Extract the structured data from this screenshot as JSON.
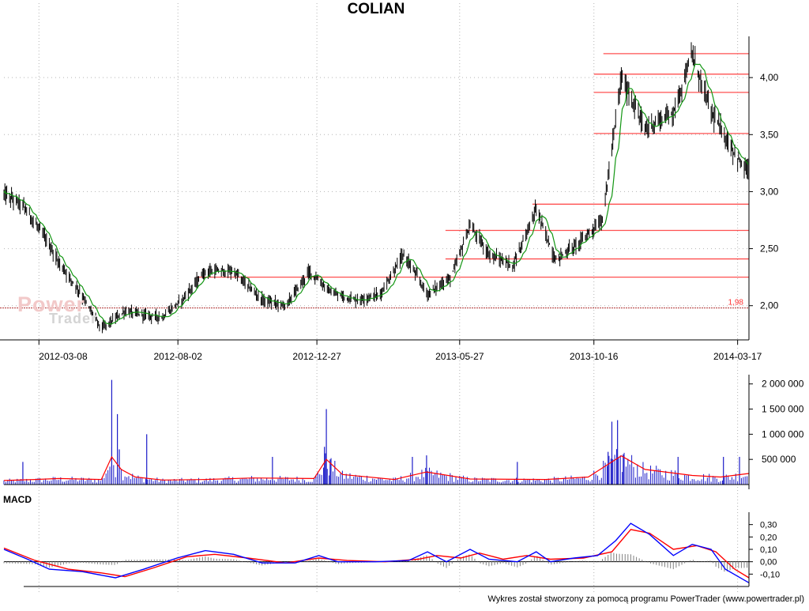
{
  "title": "COLIAN",
  "watermark": {
    "line1": "Power",
    "line2": "Trader"
  },
  "footer": "Wykres został stworzony za pomocą programu PowerTrader (www.powertrader.pl)",
  "colors": {
    "grid": "#b4b4b4",
    "hline": "#ff5050",
    "price": "#000000",
    "ma": "#129612",
    "volume": "#1c1cc8",
    "volume_ma": "#ff0000",
    "macd": "#0000ff",
    "signal": "#ff0000",
    "hist": "#808080"
  },
  "chart_data": [
    {
      "panel": "price",
      "type": "line",
      "title": "COLIAN",
      "ylim": [
        1.7,
        4.5
      ],
      "yticks": [
        "2,00",
        "2,50",
        "3,00",
        "3,50",
        "4,00"
      ],
      "xticks": [
        "2012-03-08",
        "2012-08-02",
        "2012-12-27",
        "2013-05-27",
        "2013-10-16",
        "2014-03-17"
      ],
      "baseline": {
        "value": 1.98,
        "label": "1,98"
      },
      "hlines": [
        {
          "value": 4.21,
          "from": "2013-10-26"
        },
        {
          "value": 4.03,
          "from": "2013-10-16"
        },
        {
          "value": 3.87,
          "from": "2013-10-16"
        },
        {
          "value": 3.51,
          "from": "2013-10-16"
        },
        {
          "value": 2.89,
          "from": "2013-08-12"
        },
        {
          "value": 2.66,
          "from": "2013-05-12"
        },
        {
          "value": 2.41,
          "from": "2013-05-12"
        },
        {
          "value": 2.25,
          "from": "2012-08-22"
        }
      ],
      "series": [
        {
          "x": [
            "2012-01-31",
            "2012-02-20",
            "2012-03-14",
            "2012-03-29",
            "2012-04-18",
            "2012-05-13",
            "2012-06-07",
            "2012-06-27",
            "2012-07-17",
            "2012-08-06",
            "2012-08-31",
            "2012-09-30",
            "2012-10-30",
            "2012-11-24",
            "2012-12-19",
            "2013-01-13",
            "2013-02-07",
            "2013-03-04",
            "2013-03-29",
            "2013-04-23",
            "2013-05-18",
            "2013-06-07",
            "2013-06-27",
            "2013-07-22",
            "2013-08-16",
            "2013-09-05",
            "2013-09-30",
            "2013-10-25",
            "2013-11-14",
            "2013-12-09",
            "2014-01-08",
            "2014-01-28",
            "2014-02-17",
            "2014-03-09",
            "2014-03-24"
          ],
          "y": [
            2.98,
            2.88,
            2.6,
            2.38,
            2.15,
            1.8,
            1.95,
            1.92,
            1.9,
            2.05,
            2.3,
            2.3,
            2.05,
            2.0,
            2.3,
            2.1,
            2.05,
            2.1,
            2.45,
            2.1,
            2.25,
            2.7,
            2.45,
            2.35,
            2.85,
            2.4,
            2.55,
            2.75,
            4.0,
            3.55,
            3.7,
            4.2,
            3.7,
            3.4,
            3.2
          ]
        }
      ]
    },
    {
      "panel": "volume",
      "type": "bar",
      "ylim": [
        0,
        2200000
      ],
      "yticks": [
        "500 000",
        "1 000 000",
        "1 500 000",
        "2 000 000"
      ],
      "spikes": [
        {
          "x": "2012-02-20",
          "value": 450000
        },
        {
          "x": "2012-05-24",
          "value": 2080000
        },
        {
          "x": "2012-05-30",
          "value": 1400000
        },
        {
          "x": "2012-06-01",
          "value": 700000
        },
        {
          "x": "2012-06-30",
          "value": 1000000
        },
        {
          "x": "2012-11-10",
          "value": 550000
        },
        {
          "x": "2013-01-06",
          "value": 1500000
        },
        {
          "x": "2013-01-04",
          "value": 750000
        },
        {
          "x": "2013-01-10",
          "value": 500000
        },
        {
          "x": "2013-04-07",
          "value": 550000
        },
        {
          "x": "2013-04-22",
          "value": 580000
        },
        {
          "x": "2013-07-27",
          "value": 450000
        },
        {
          "x": "2013-10-31",
          "value": 650000
        },
        {
          "x": "2013-11-04",
          "value": 1250000
        },
        {
          "x": "2013-11-10",
          "value": 1280000
        },
        {
          "x": "2013-11-16",
          "value": 600000
        },
        {
          "x": "2014-01-13",
          "value": 550000
        },
        {
          "x": "2014-03-02",
          "value": 550000
        },
        {
          "x": "2014-03-19",
          "value": 550000
        }
      ],
      "series": [
        {
          "type": "line",
          "x": [
            "2012-01-31",
            "2012-03-04",
            "2012-03-29",
            "2012-05-13",
            "2012-05-24",
            "2012-06-03",
            "2012-06-18",
            "2012-07-17",
            "2012-08-31",
            "2012-10-20",
            "2012-12-24",
            "2013-01-06",
            "2013-01-23",
            "2013-03-19",
            "2013-04-22",
            "2013-06-07",
            "2013-08-26",
            "2013-10-10",
            "2013-11-14",
            "2013-12-09",
            "2014-01-28",
            "2014-02-27",
            "2014-03-29"
          ],
          "y": [
            80000,
            100000,
            120000,
            100000,
            550000,
            300000,
            150000,
            90000,
            100000,
            130000,
            120000,
            500000,
            200000,
            100000,
            250000,
            110000,
            100000,
            150000,
            570000,
            300000,
            180000,
            150000,
            220000
          ]
        }
      ]
    },
    {
      "panel": "macd",
      "type": "line",
      "title": "MACD",
      "ylim": [
        -0.2,
        0.4
      ],
      "yticks": [
        "-0,10",
        "0,00",
        "0,10",
        "0,20",
        "0,30"
      ],
      "series": [
        {
          "name": "",
          "x": [
            "2012-01-31",
            "2012-02-25",
            "2012-03-19",
            "2012-04-23",
            "2012-05-28",
            "2012-06-27",
            "2012-08-01",
            "2012-08-31",
            "2012-09-30",
            "2012-10-30",
            "2012-12-04",
            "2012-12-29",
            "2013-01-18",
            "2013-02-27",
            "2013-04-03",
            "2013-04-23",
            "2013-05-13",
            "2013-06-07",
            "2013-06-27",
            "2013-07-27",
            "2013-08-16",
            "2013-08-31",
            "2013-09-25",
            "2013-10-20",
            "2013-11-08",
            "2013-11-24",
            "2013-12-14",
            "2014-01-08",
            "2014-01-28",
            "2014-02-17",
            "2014-03-04",
            "2014-03-29"
          ],
          "y": [
            0.1,
            0.02,
            -0.06,
            -0.08,
            -0.13,
            -0.06,
            0.03,
            0.09,
            0.06,
            -0.01,
            -0.01,
            0.05,
            0.0,
            0.0,
            0.01,
            0.08,
            0.0,
            0.1,
            0.02,
            0.0,
            0.08,
            0.0,
            0.03,
            0.05,
            0.17,
            0.31,
            0.22,
            0.05,
            0.14,
            0.1,
            -0.06,
            -0.17
          ]
        },
        {
          "name": "",
          "x": [
            "2012-01-31",
            "2012-03-04",
            "2012-04-08",
            "2012-05-13",
            "2012-06-07",
            "2012-07-07",
            "2012-08-11",
            "2012-09-10",
            "2012-10-15",
            "2012-11-24",
            "2012-12-29",
            "2013-01-28",
            "2013-03-09",
            "2013-04-13",
            "2013-05-03",
            "2013-05-28",
            "2013-06-17",
            "2013-07-12",
            "2013-08-06",
            "2013-08-31",
            "2013-10-05",
            "2013-11-04",
            "2013-11-24",
            "2013-12-14",
            "2014-01-08",
            "2014-02-02",
            "2014-02-22",
            "2014-03-14",
            "2014-03-29"
          ],
          "y": [
            0.11,
            0.01,
            -0.06,
            -0.09,
            -0.12,
            -0.05,
            0.04,
            0.06,
            0.03,
            -0.01,
            0.03,
            0.01,
            0.0,
            0.02,
            0.05,
            0.03,
            0.07,
            0.02,
            0.05,
            0.02,
            0.03,
            0.08,
            0.26,
            0.23,
            0.1,
            0.13,
            0.08,
            -0.06,
            -0.13
          ]
        }
      ]
    }
  ]
}
